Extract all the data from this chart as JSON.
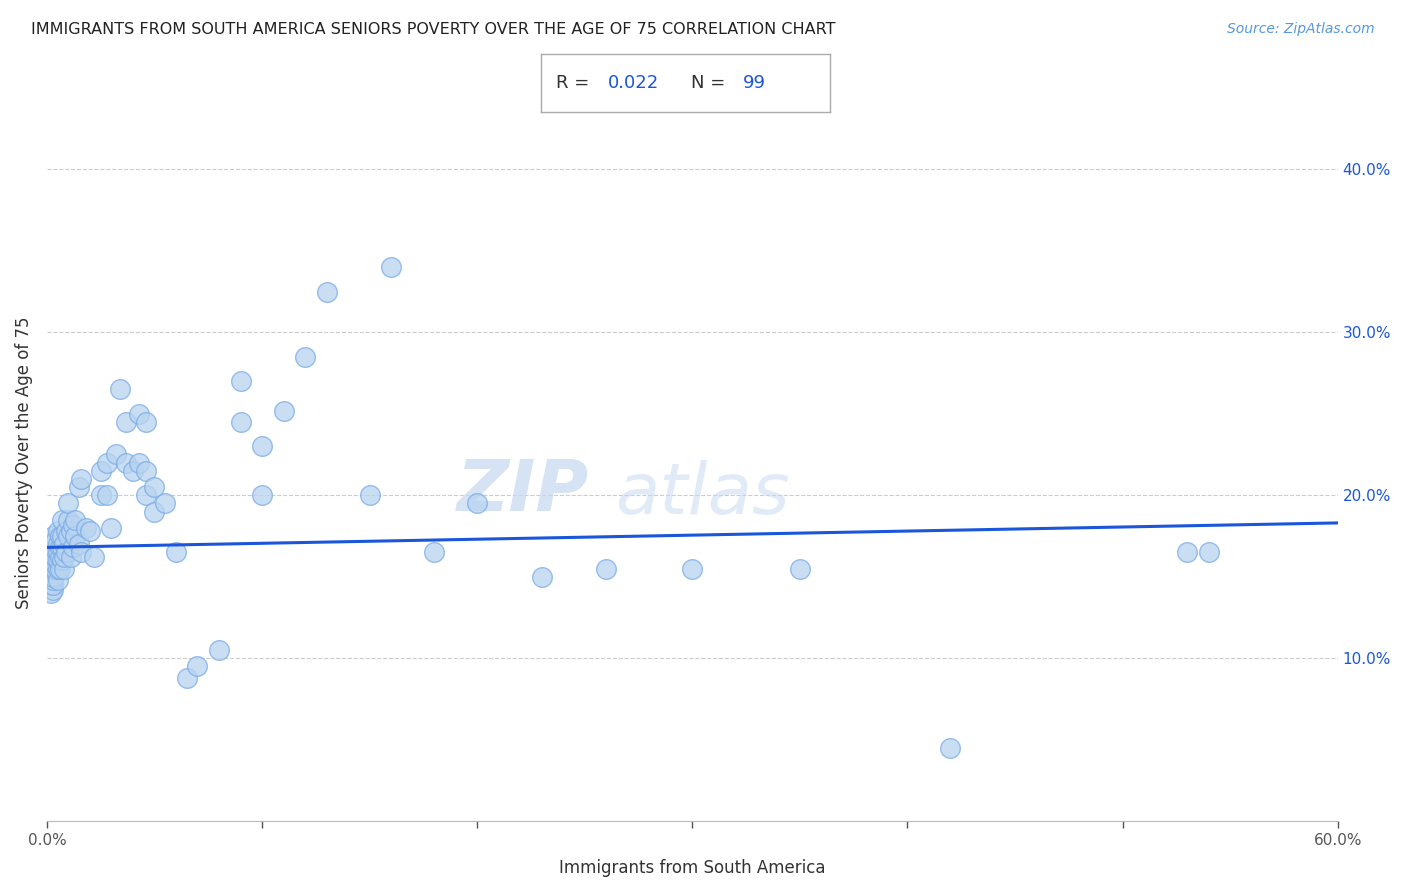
{
  "title": "IMMIGRANTS FROM SOUTH AMERICA SENIORS POVERTY OVER THE AGE OF 75 CORRELATION CHART",
  "source": "Source: ZipAtlas.com",
  "xlabel": "Immigrants from South America",
  "ylabel": "Seniors Poverty Over the Age of 75",
  "R": 0.022,
  "N": 99,
  "xlim": [
    0.0,
    0.6
  ],
  "ylim": [
    0.0,
    0.44
  ],
  "background_color": "#ffffff",
  "scatter_color": "#b8d4f0",
  "scatter_edge_color": "#7aabe8",
  "line_color": "#1a56db",
  "watermark_zip": "ZIP",
  "watermark_atlas": "atlas",
  "scatter_x": [
    0.001,
    0.001,
    0.001,
    0.002,
    0.002,
    0.002,
    0.002,
    0.002,
    0.002,
    0.002,
    0.003,
    0.003,
    0.003,
    0.003,
    0.003,
    0.003,
    0.003,
    0.003,
    0.003,
    0.004,
    0.004,
    0.004,
    0.004,
    0.004,
    0.005,
    0.005,
    0.005,
    0.005,
    0.005,
    0.005,
    0.006,
    0.006,
    0.006,
    0.006,
    0.007,
    0.007,
    0.007,
    0.007,
    0.008,
    0.008,
    0.008,
    0.009,
    0.009,
    0.01,
    0.01,
    0.01,
    0.011,
    0.011,
    0.012,
    0.012,
    0.013,
    0.013,
    0.015,
    0.015,
    0.016,
    0.016,
    0.018,
    0.02,
    0.022,
    0.025,
    0.025,
    0.028,
    0.028,
    0.03,
    0.032,
    0.034,
    0.037,
    0.037,
    0.04,
    0.043,
    0.043,
    0.046,
    0.046,
    0.046,
    0.05,
    0.05,
    0.055,
    0.06,
    0.065,
    0.07,
    0.08,
    0.09,
    0.09,
    0.1,
    0.1,
    0.11,
    0.12,
    0.13,
    0.15,
    0.16,
    0.18,
    0.2,
    0.23,
    0.26,
    0.3,
    0.35,
    0.42,
    0.53,
    0.54
  ],
  "scatter_y": [
    0.145,
    0.15,
    0.155,
    0.14,
    0.145,
    0.15,
    0.155,
    0.16,
    0.162,
    0.165,
    0.142,
    0.145,
    0.148,
    0.15,
    0.155,
    0.16,
    0.165,
    0.17,
    0.175,
    0.155,
    0.158,
    0.162,
    0.167,
    0.172,
    0.148,
    0.155,
    0.16,
    0.165,
    0.17,
    0.178,
    0.155,
    0.162,
    0.168,
    0.175,
    0.16,
    0.168,
    0.175,
    0.185,
    0.155,
    0.162,
    0.17,
    0.165,
    0.178,
    0.175,
    0.185,
    0.195,
    0.162,
    0.178,
    0.168,
    0.182,
    0.175,
    0.185,
    0.17,
    0.205,
    0.165,
    0.21,
    0.18,
    0.178,
    0.162,
    0.2,
    0.215,
    0.2,
    0.22,
    0.18,
    0.225,
    0.265,
    0.22,
    0.245,
    0.215,
    0.22,
    0.25,
    0.2,
    0.215,
    0.245,
    0.19,
    0.205,
    0.195,
    0.165,
    0.088,
    0.095,
    0.105,
    0.245,
    0.27,
    0.2,
    0.23,
    0.252,
    0.285,
    0.325,
    0.2,
    0.34,
    0.165,
    0.195,
    0.15,
    0.155,
    0.155,
    0.155,
    0.045,
    0.165,
    0.165
  ]
}
